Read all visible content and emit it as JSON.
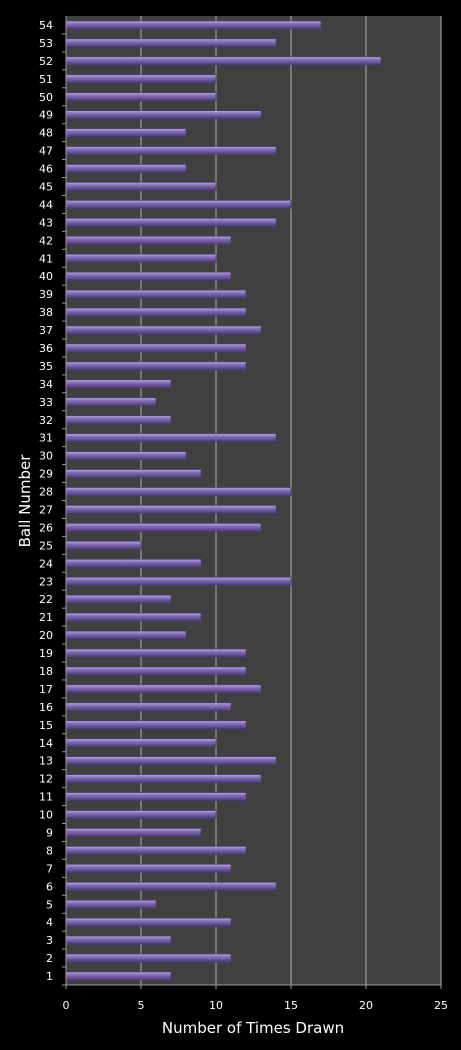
{
  "chart_data": {
    "type": "bar",
    "orientation": "horizontal",
    "xlabel": "Number of Times Drawn",
    "ylabel": "Ball Number",
    "xlim": [
      0,
      25
    ],
    "x_ticks": [
      "0",
      "5",
      "10",
      "15",
      "20",
      "25"
    ],
    "grid": true,
    "legend": "none",
    "colors": {
      "background": "#000000",
      "plot_area": "#404040",
      "bar_fill": "#8470b8",
      "bar_highlight": "#b8a8e8",
      "bar_shadow": "#4a3a78",
      "gridline": "#b0b0b0",
      "axis": "#9a9a9a",
      "text": "#ffffff"
    },
    "categories": [
      "1",
      "2",
      "3",
      "4",
      "5",
      "6",
      "7",
      "8",
      "9",
      "10",
      "11",
      "12",
      "13",
      "14",
      "15",
      "16",
      "17",
      "18",
      "19",
      "20",
      "21",
      "22",
      "23",
      "24",
      "25",
      "26",
      "27",
      "28",
      "29",
      "30",
      "31",
      "32",
      "33",
      "34",
      "35",
      "36",
      "37",
      "38",
      "39",
      "40",
      "41",
      "42",
      "43",
      "44",
      "45",
      "46",
      "47",
      "48",
      "49",
      "50",
      "51",
      "52",
      "53",
      "54"
    ],
    "values": [
      7,
      11,
      7,
      11,
      6,
      14,
      11,
      12,
      9,
      10,
      12,
      13,
      14,
      10,
      12,
      11,
      13,
      12,
      12,
      8,
      9,
      7,
      15,
      9,
      5,
      13,
      14,
      15,
      9,
      8,
      14,
      7,
      6,
      7,
      12,
      12,
      13,
      12,
      12,
      11,
      10,
      11,
      14,
      15,
      10,
      8,
      14,
      8,
      13,
      10,
      10,
      21,
      14,
      17
    ]
  }
}
